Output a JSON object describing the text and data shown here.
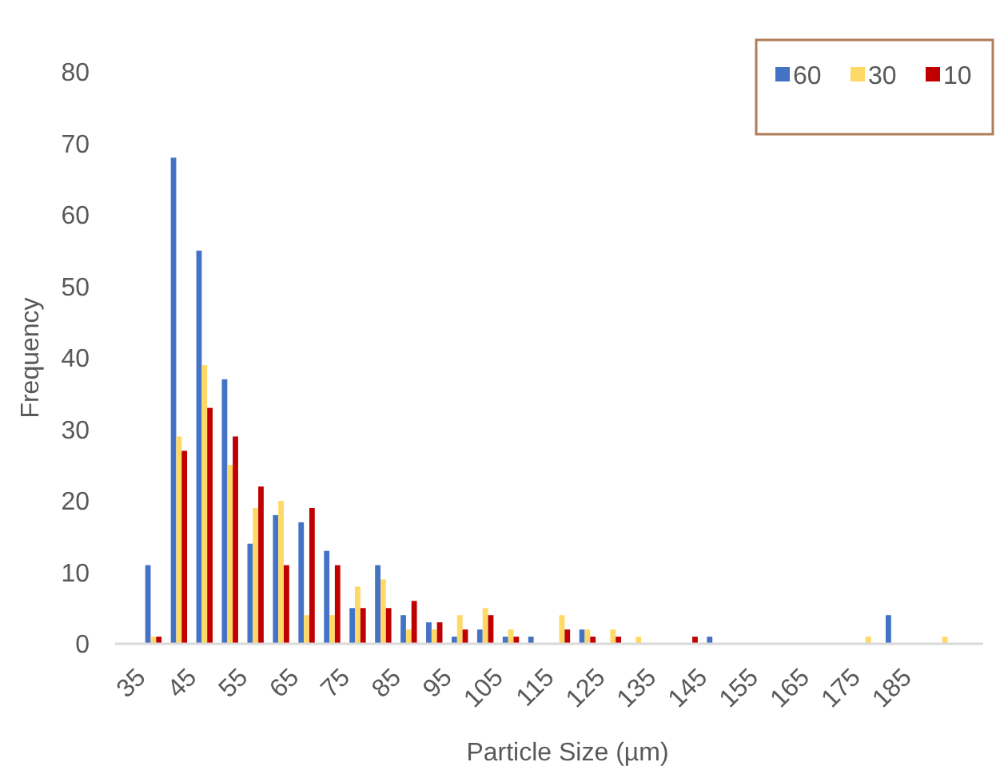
{
  "chart_data": {
    "type": "bar",
    "xlabel": "Particle Size (µm)",
    "ylabel": "Frequency",
    "categories": [
      "35",
      null,
      "45",
      null,
      "55",
      null,
      "65",
      null,
      "75",
      null,
      "85",
      null,
      "95",
      null,
      "105",
      null,
      "115",
      null,
      "125",
      null,
      "135",
      null,
      "145",
      null,
      "155",
      null,
      "165",
      null,
      "175",
      null,
      "185",
      null,
      null,
      null
    ],
    "series": [
      {
        "name": "60",
        "color": "#4472c4",
        "values": [
          0,
          11,
          68,
          55,
          37,
          14,
          18,
          17,
          13,
          5,
          11,
          4,
          3,
          1,
          2,
          1,
          1,
          0,
          2,
          0,
          0,
          0,
          0,
          1,
          0,
          0,
          0,
          0,
          0,
          0,
          4,
          0,
          0,
          0
        ]
      },
      {
        "name": "30",
        "color": "#ffd966",
        "values": [
          0,
          1,
          29,
          39,
          25,
          19,
          20,
          4,
          4,
          8,
          9,
          2,
          2,
          4,
          5,
          2,
          0,
          4,
          2,
          2,
          1,
          0,
          0,
          0,
          0,
          0,
          0,
          0,
          0,
          1,
          0,
          0,
          1,
          0
        ]
      },
      {
        "name": "10",
        "color": "#c00000",
        "values": [
          0,
          1,
          27,
          33,
          29,
          22,
          11,
          19,
          11,
          5,
          5,
          6,
          3,
          2,
          4,
          1,
          0,
          2,
          1,
          1,
          0,
          0,
          1,
          0,
          0,
          0,
          0,
          0,
          0,
          0,
          0,
          0,
          0,
          0
        ]
      }
    ],
    "ylim": [
      0,
      80
    ],
    "yticks": [
      0,
      10,
      20,
      30,
      40,
      50,
      60,
      70,
      80
    ],
    "grid": false,
    "legend": "top right"
  }
}
